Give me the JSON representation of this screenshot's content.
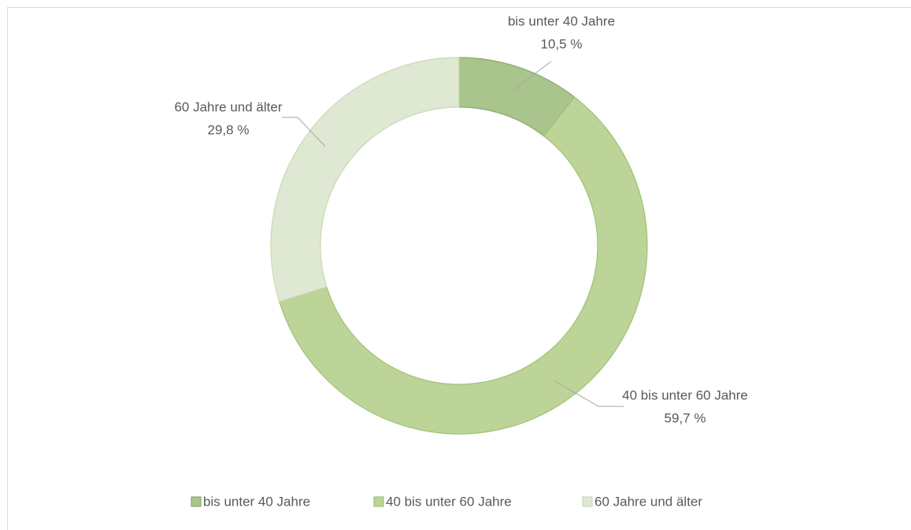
{
  "chart_data": {
    "type": "donut",
    "categories": [
      "bis unter 40 Jahre",
      "40 bis unter 60 Jahre",
      "60 Jahre und älter"
    ],
    "values": [
      10.5,
      59.7,
      29.8
    ],
    "value_labels": [
      "10,5 %",
      "59,7 %",
      "29,8 %"
    ],
    "colors": [
      "#a9c48c",
      "#bcd498",
      "#dfe8d2"
    ],
    "legend": "bottom"
  }
}
